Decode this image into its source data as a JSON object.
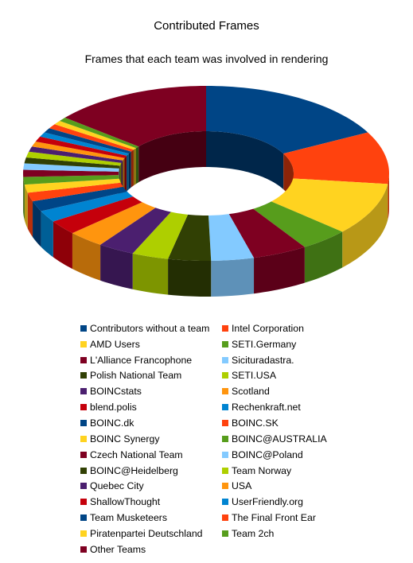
{
  "chart_data": {
    "type": "pie",
    "style": "3d-donut",
    "title": "Contributed Frames",
    "subtitle": "Frames that each team was involved in rendering",
    "legend_position": "bottom",
    "slices": [
      {
        "label": "Contributors without a team",
        "value": 16.0,
        "color": "#004586"
      },
      {
        "label": "Intel Corporation",
        "value": 9.0,
        "color": "#ff420e"
      },
      {
        "label": "AMD Users",
        "value": 9.0,
        "color": "#ffd320"
      },
      {
        "label": "SETI.Germany",
        "value": 4.0,
        "color": "#579d1c"
      },
      {
        "label": "L'Alliance Francophone",
        "value": 4.5,
        "color": "#7e0021"
      },
      {
        "label": "Siciturадastra.",
        "value": 3.5,
        "color": "#83caff"
      },
      {
        "label": "Polish National Team",
        "value": 3.5,
        "color": "#314004"
      },
      {
        "label": "SETI.USA",
        "value": 3.0,
        "color": "#aecf00"
      },
      {
        "label": "BOINCstats",
        "value": 3.0,
        "color": "#4b1f6f"
      },
      {
        "label": "Scotland",
        "value": 3.0,
        "color": "#ff950e"
      },
      {
        "label": "blend.polis",
        "value": 2.5,
        "color": "#c5000b"
      },
      {
        "label": "Rechenkraft.net",
        "value": 2.0,
        "color": "#0084d1"
      },
      {
        "label": "BOINC.dk",
        "value": 1.8,
        "color": "#004586"
      },
      {
        "label": "BOINC.SK",
        "value": 1.5,
        "color": "#ff420e"
      },
      {
        "label": "BOINC Synergy",
        "value": 1.4,
        "color": "#ffd320"
      },
      {
        "label": "BOINC@AUSTRALIA",
        "value": 1.3,
        "color": "#579d1c"
      },
      {
        "label": "Czech National Team",
        "value": 1.2,
        "color": "#7e0021"
      },
      {
        "label": "BOINC@Poland",
        "value": 1.1,
        "color": "#83caff"
      },
      {
        "label": "BOINC@Heidelberg",
        "value": 1.0,
        "color": "#314004"
      },
      {
        "label": "Team Norway",
        "value": 1.0,
        "color": "#aecf00"
      },
      {
        "label": "Quebec City",
        "value": 0.9,
        "color": "#4b1f6f"
      },
      {
        "label": "USA",
        "value": 0.9,
        "color": "#ff950e"
      },
      {
        "label": "ShallowThought",
        "value": 0.9,
        "color": "#c5000b"
      },
      {
        "label": "UserFriendly.org",
        "value": 0.8,
        "color": "#0084d1"
      },
      {
        "label": "Team Musketeers",
        "value": 0.8,
        "color": "#004586"
      },
      {
        "label": "The Final Front Ear",
        "value": 0.8,
        "color": "#ff420e"
      },
      {
        "label": "Piratenpartei Deutschland",
        "value": 0.7,
        "color": "#ffd320"
      },
      {
        "label": "Team 2ch",
        "value": 0.7,
        "color": "#579d1c"
      },
      {
        "label": "Other Teams",
        "value": 13.0,
        "color": "#7e0021"
      }
    ]
  }
}
